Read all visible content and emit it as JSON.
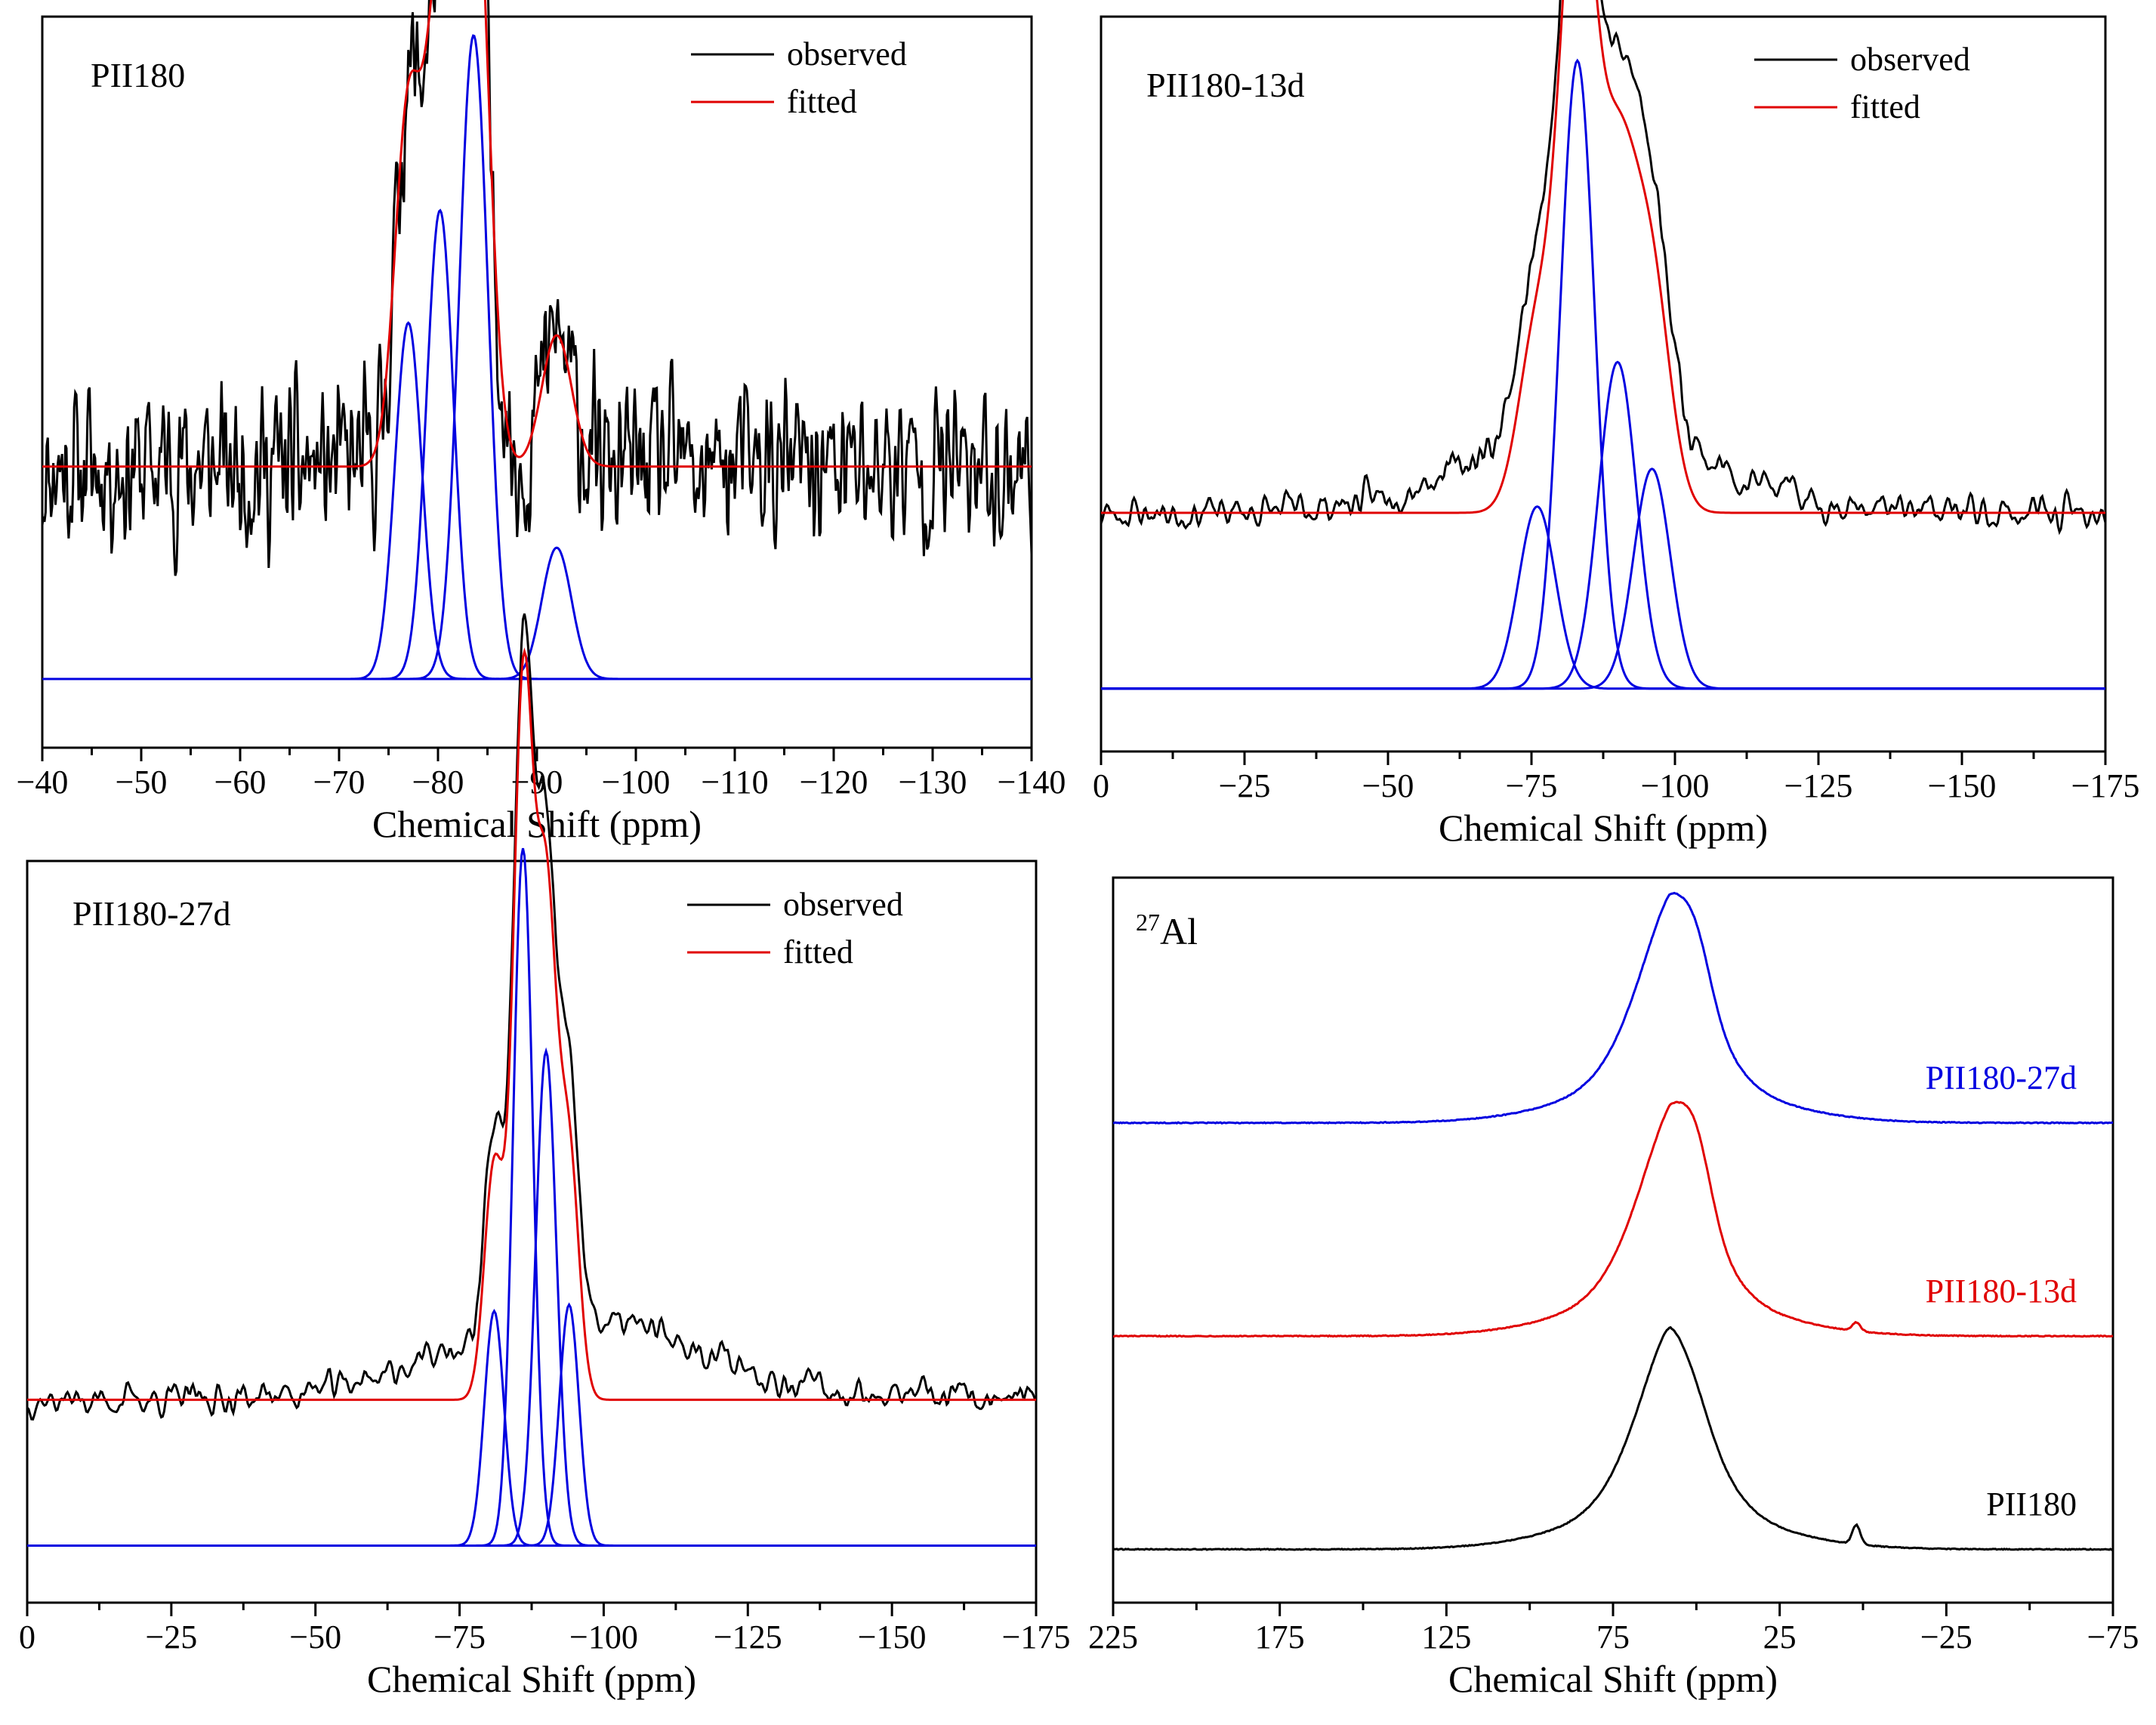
{
  "chart_data": [
    {
      "id": "p1",
      "type": "line",
      "title": "PII180",
      "xlabel": "Chemical Shift (ppm)",
      "ylabel": "",
      "xlim": [
        -40,
        -140
      ],
      "xticks": [
        -40,
        -50,
        -60,
        -70,
        -80,
        -90,
        -100,
        -110,
        -120,
        -130,
        -140
      ],
      "xtick_labels": [
        "−40",
        "−50",
        "−60",
        "−70",
        "−80",
        "−90",
        "−100",
        "−110",
        "−120",
        "−130",
        "−140"
      ],
      "legend": [
        {
          "name": "observed",
          "color": "#000000"
        },
        {
          "name": "fitted",
          "color": "#e00000"
        }
      ],
      "legend_position": "top-right",
      "observed": {
        "baseline": 0.4,
        "noise": 0.085,
        "seed": 11,
        "smooth": 1,
        "steps": 900
      },
      "fitted_baseline": 0.4,
      "component_baseline": 0.06,
      "components": [
        {
          "center": -77.0,
          "sigma": 1.35,
          "height": 0.57
        },
        {
          "center": -80.2,
          "sigma": 1.35,
          "height": 0.75
        },
        {
          "center": -83.6,
          "sigma": 1.45,
          "height": 1.03
        },
        {
          "center": -92.0,
          "sigma": 1.5,
          "height": 0.21
        }
      ]
    },
    {
      "id": "p2",
      "type": "line",
      "title": "PII180-13d",
      "xlabel": "Chemical Shift (ppm)",
      "ylabel": "",
      "xlim": [
        0,
        -175
      ],
      "xticks": [
        0,
        -25,
        -50,
        -75,
        -100,
        -125,
        -150,
        -175
      ],
      "xtick_labels": [
        "0",
        "−25",
        "−50",
        "−75",
        "−100",
        "−125",
        "−150",
        "−175"
      ],
      "legend": [
        {
          "name": "observed",
          "color": "#000000"
        },
        {
          "name": "fitted",
          "color": "#e00000"
        }
      ],
      "legend_position": "top-right",
      "observed": {
        "baseline": 0.33,
        "noise": 0.022,
        "seed": 23,
        "smooth": 3,
        "steps": 700,
        "broad": {
          "center": -85,
          "sigma": 20,
          "height": 0.14
        },
        "extra_peak": 0.05
      },
      "fitted_baseline": 0.33,
      "component_baseline": 0.05,
      "components": [
        {
          "center": -76.0,
          "sigma": 3.2,
          "height": 0.29
        },
        {
          "center": -83.0,
          "sigma": 3.0,
          "height": 1.0
        },
        {
          "center": -90.0,
          "sigma": 3.3,
          "height": 0.52
        },
        {
          "center": -96.0,
          "sigma": 3.2,
          "height": 0.35
        }
      ]
    },
    {
      "id": "p3",
      "type": "line",
      "title": "PII180-27d",
      "xlabel": "Chemical Shift (ppm)",
      "ylabel": "",
      "xlim": [
        0,
        -175
      ],
      "xticks": [
        0,
        -25,
        -50,
        -75,
        -100,
        -125,
        -150,
        -175
      ],
      "xtick_labels": [
        "0",
        "−25",
        "−50",
        "−75",
        "−100",
        "−125",
        "−150",
        "−175"
      ],
      "legend": [
        {
          "name": "observed",
          "color": "#000000"
        },
        {
          "name": "fitted",
          "color": "#e00000"
        }
      ],
      "legend_position": "top-right",
      "observed": {
        "baseline": 0.27,
        "noise": 0.02,
        "seed": 37,
        "smooth": 3,
        "steps": 700,
        "broad": {
          "center": -95,
          "sigma": 22,
          "height": 0.13
        },
        "extra_peak": 0.0
      },
      "fitted_baseline": 0.27,
      "component_baseline": 0.04,
      "components": [
        {
          "center": -81.0,
          "sigma": 1.7,
          "height": 0.37
        },
        {
          "center": -86.0,
          "sigma": 1.7,
          "height": 1.1
        },
        {
          "center": -90.0,
          "sigma": 1.8,
          "height": 0.78
        },
        {
          "center": -94.0,
          "sigma": 1.7,
          "height": 0.38
        }
      ]
    },
    {
      "id": "p4",
      "type": "line",
      "title": "27Al",
      "title_superscript": "27",
      "title_main": "Al",
      "xlabel": "Chemical Shift (ppm)",
      "ylabel": "",
      "xlim": [
        225,
        -75
      ],
      "xticks": [
        225,
        175,
        125,
        75,
        25,
        -25,
        -75
      ],
      "xtick_labels": [
        "225",
        "175",
        "125",
        "75",
        "25",
        "−25",
        "−75"
      ],
      "series": [
        {
          "name": "PII180-27d",
          "color": "#0000e0",
          "offset": 2.0,
          "peak": 58.0,
          "shoulder": 0.22,
          "spinning": 0.0
        },
        {
          "name": "PII180-13d",
          "color": "#e00000",
          "offset": 1.0,
          "peak": 58.0,
          "shoulder": 0.28,
          "spinning": 0.04
        },
        {
          "name": "PII180",
          "color": "#000000",
          "offset": 0.0,
          "peak": 58.0,
          "shoulder": 0.05,
          "spinning": 0.09
        }
      ]
    }
  ]
}
